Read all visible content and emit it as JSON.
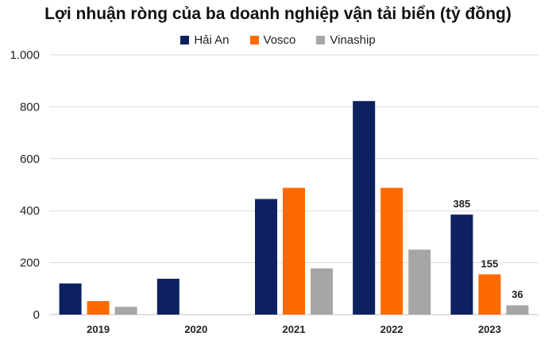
{
  "chart_data": {
    "type": "bar",
    "title": "Lợi nhuận ròng của ba doanh nghiệp vận tải biển (tỷ đồng)",
    "xlabel": "",
    "ylabel": "",
    "categories": [
      "2019",
      "2020",
      "2021",
      "2022",
      "2023"
    ],
    "series": [
      {
        "name": "Hải An",
        "color": "#0d2161",
        "values": [
          120,
          138,
          445,
          822,
          385
        ]
      },
      {
        "name": "Vosco",
        "color": "#ff6a00",
        "values": [
          52,
          0,
          488,
          488,
          155
        ]
      },
      {
        "name": "Vinaship",
        "color": "#a6a6a6",
        "values": [
          30,
          0,
          178,
          250,
          36
        ]
      }
    ],
    "ylim": [
      0,
      1000
    ],
    "yticks": [
      0,
      200,
      400,
      600,
      800,
      1000
    ],
    "ytick_labels": [
      "0",
      "200",
      "400",
      "600",
      "800",
      "1.000"
    ],
    "grid": true,
    "legend": "top-center",
    "data_labels": [
      {
        "category": "2023",
        "series": "Hải An",
        "text": "385"
      },
      {
        "category": "2023",
        "series": "Vosco",
        "text": "155"
      },
      {
        "category": "2023",
        "series": "Vinaship",
        "text": "36"
      }
    ]
  }
}
